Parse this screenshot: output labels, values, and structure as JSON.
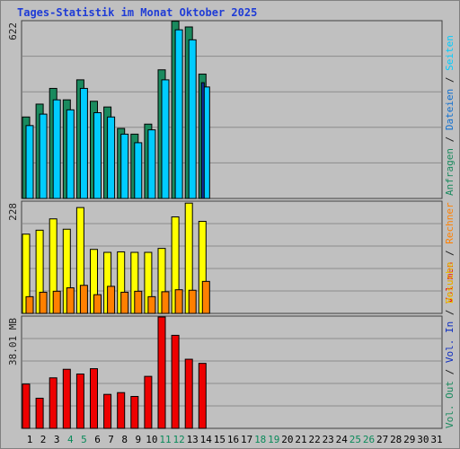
{
  "title": "Tages-Statistik im Monat Oktober 2025",
  "chart_data": [
    {
      "type": "bar",
      "panel": "top",
      "ymax_label": "622",
      "ymax": 622,
      "categories": [
        "1",
        "2",
        "3",
        "4",
        "5",
        "6",
        "7",
        "8",
        "9",
        "10",
        "11",
        "12",
        "13",
        "14"
      ],
      "series": [
        {
          "name": "Anfragen",
          "color": "#1a8a5e",
          "values": [
            285,
            330,
            385,
            345,
            415,
            340,
            320,
            245,
            225,
            260,
            450,
            620,
            600,
            435
          ]
        },
        {
          "name": "Dateien",
          "color": "#00ccff",
          "values": [
            255,
            295,
            345,
            310,
            385,
            300,
            285,
            225,
            195,
            240,
            415,
            590,
            555,
            390
          ]
        },
        {
          "name": "Seiten",
          "color": "#1030a0",
          "values": [
            0,
            0,
            0,
            0,
            0,
            0,
            0,
            0,
            0,
            0,
            0,
            0,
            0,
            405
          ]
        }
      ]
    },
    {
      "type": "bar",
      "panel": "middle",
      "ymax_label": "228",
      "ymax": 228,
      "categories": [
        "1",
        "2",
        "3",
        "4",
        "5",
        "6",
        "7",
        "8",
        "9",
        "10",
        "11",
        "12",
        "13",
        "14"
      ],
      "series": [
        {
          "name": "Besuche",
          "color": "#ffff00",
          "values": [
            161,
            169,
            192,
            171,
            215,
            130,
            124,
            125,
            124,
            124,
            132,
            196,
            224,
            187
          ]
        },
        {
          "name": "Rechner",
          "color": "#ff8000",
          "values": [
            34,
            43,
            45,
            52,
            57,
            38,
            55,
            43,
            45,
            34,
            44,
            48,
            47,
            65
          ]
        }
      ]
    },
    {
      "type": "bar",
      "panel": "bottom",
      "ymax_label": "38.01 MB",
      "ymax": 38.01,
      "categories": [
        "1",
        "2",
        "3",
        "4",
        "5",
        "6",
        "7",
        "8",
        "9",
        "10",
        "11",
        "12",
        "13",
        "14"
      ],
      "series": [
        {
          "name": "Volumen",
          "color": "#ee0000",
          "values": [
            15.0,
            10.2,
            17.1,
            20.0,
            18.4,
            20.2,
            11.5,
            12.1,
            10.8,
            17.6,
            37.7,
            31.5,
            23.4,
            22.0
          ]
        }
      ]
    }
  ],
  "x_axis_days": [
    "1",
    "2",
    "3",
    "4",
    "5",
    "6",
    "7",
    "8",
    "9",
    "10",
    "11",
    "12",
    "13",
    "14",
    "15",
    "16",
    "17",
    "18",
    "19",
    "20",
    "21",
    "22",
    "23",
    "24",
    "25",
    "26",
    "27",
    "28",
    "29",
    "30",
    "31"
  ],
  "weekend_days": [
    "4",
    "5",
    "11",
    "12",
    "18",
    "19",
    "25",
    "26"
  ],
  "day_label_color": "#000000",
  "weekend_label_color": "#0a8a5a",
  "right_labels": {
    "panel_top": [
      {
        "text": "Anfragen",
        "color": "#1a8a5e"
      },
      {
        "text": " / ",
        "color": "#202020"
      },
      {
        "text": "Dateien",
        "color": "#1070d0"
      },
      {
        "text": " / ",
        "color": "#202020"
      },
      {
        "text": "Seiten",
        "color": "#00ccff"
      }
    ],
    "panel_mid": [
      {
        "text": "Besuche",
        "color": "#e8c000"
      },
      {
        "text": " / ",
        "color": "#202020"
      },
      {
        "text": "Rechner",
        "color": "#ff8000"
      }
    ],
    "panel_bot": [
      {
        "text": "Vol. Out",
        "color": "#1a8a5e"
      },
      {
        "text": " / ",
        "color": "#202020"
      },
      {
        "text": "Vol. In",
        "color": "#1030c0"
      },
      {
        "text": " / ",
        "color": "#202020"
      },
      {
        "text": "Volumen",
        "color": "#ee0000"
      }
    ]
  }
}
